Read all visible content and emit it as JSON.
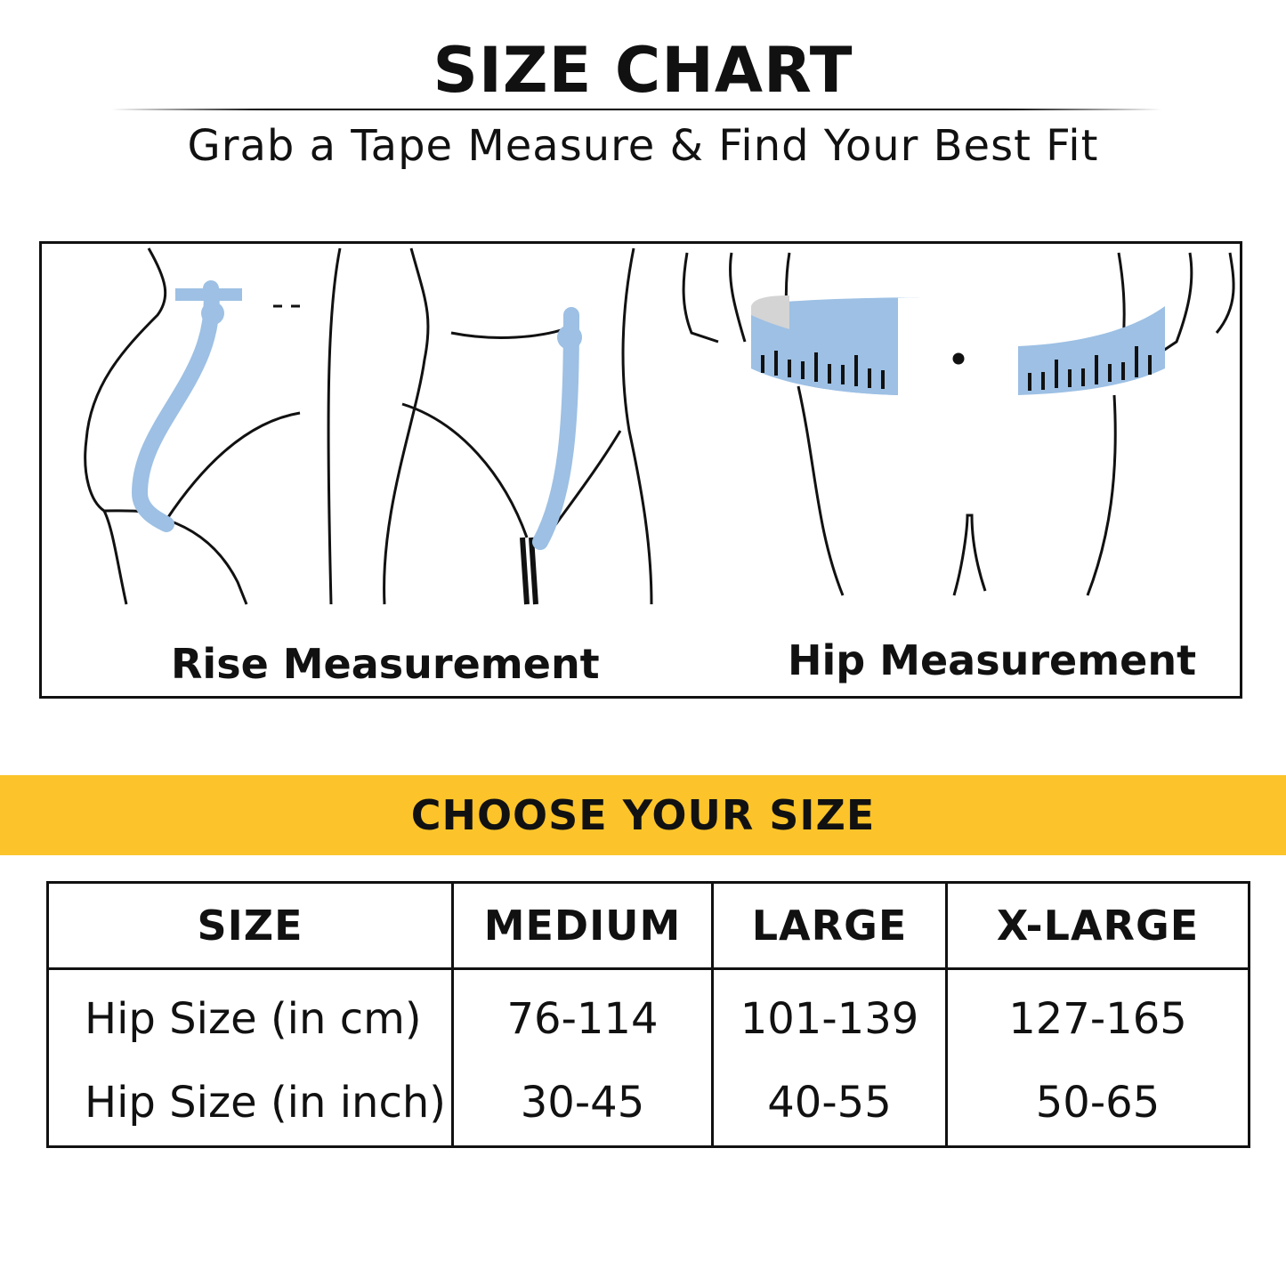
{
  "header": {
    "title": "SIZE CHART",
    "subtitle": "Grab a Tape Measure & Find Your Best Fit"
  },
  "illustration": {
    "rise_label": "Rise Measurement",
    "hip_label": "Hip Measurement",
    "tape_color": "#9dc0e4"
  },
  "banner": {
    "label": "CHOOSE YOUR SIZE",
    "color": "#fcc42a"
  },
  "size_table": {
    "headers": [
      "SIZE",
      "MEDIUM",
      "LARGE",
      "X-LARGE"
    ],
    "row_labels": [
      "Hip Size (in cm)",
      "Hip Size (in inch)"
    ],
    "columns": [
      {
        "cm": "76-114",
        "inch": "30-45"
      },
      {
        "cm": "101-139",
        "inch": "40-55"
      },
      {
        "cm": "127-165",
        "inch": "50-65"
      }
    ]
  }
}
